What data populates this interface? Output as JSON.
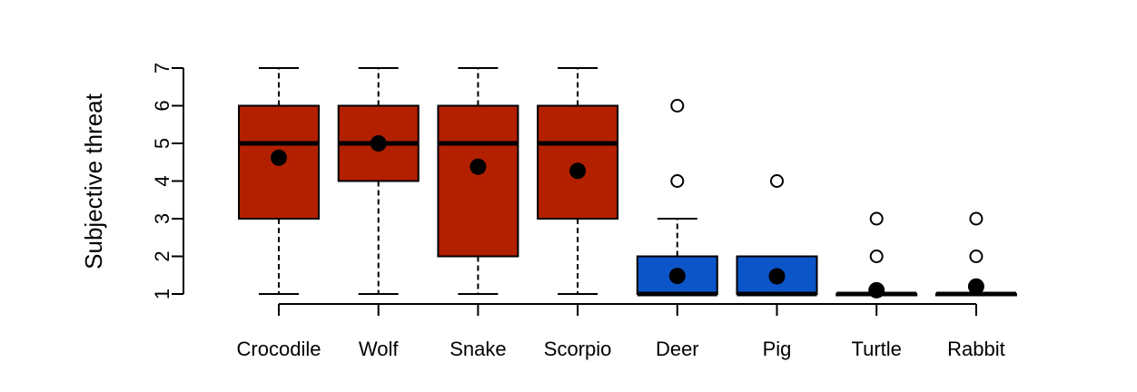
{
  "chart_data": {
    "type": "box",
    "title": "",
    "xlabel": "",
    "ylabel": "Subjective threat",
    "ylim": [
      1,
      7
    ],
    "yticks": [
      1,
      2,
      3,
      4,
      5,
      6,
      7
    ],
    "grid": false,
    "categories": [
      "Crocodile",
      "Wolf",
      "Snake",
      "Scorpio",
      "Deer",
      "Pig",
      "Turtle",
      "Rabbit"
    ],
    "boxes": [
      {
        "category": "Crocodile",
        "min": 1,
        "q1": 3,
        "median": 5,
        "q3": 6,
        "max": 7,
        "mean": 4.62,
        "outliers": [],
        "color": "#B22000"
      },
      {
        "category": "Wolf",
        "min": 1,
        "q1": 4,
        "median": 5,
        "q3": 6,
        "max": 7,
        "mean": 5.0,
        "outliers": [],
        "color": "#B22000"
      },
      {
        "category": "Snake",
        "min": 1,
        "q1": 2,
        "median": 5,
        "q3": 6,
        "max": 7,
        "mean": 4.38,
        "outliers": [],
        "color": "#B22000"
      },
      {
        "category": "Scorpio",
        "min": 1,
        "q1": 3,
        "median": 5,
        "q3": 6,
        "max": 7,
        "mean": 4.27,
        "outliers": [],
        "color": "#B22000"
      },
      {
        "category": "Deer",
        "min": 1,
        "q1": 1,
        "median": 1,
        "q3": 2,
        "max": 3,
        "mean": 1.48,
        "outliers": [
          4,
          6
        ],
        "color": "#0B55C8"
      },
      {
        "category": "Pig",
        "min": 1,
        "q1": 1,
        "median": 1,
        "q3": 2,
        "max": 2,
        "mean": 1.47,
        "outliers": [
          4
        ],
        "color": "#0B55C8"
      },
      {
        "category": "Turtle",
        "min": 1,
        "q1": 1,
        "median": 1,
        "q3": 1,
        "max": 1,
        "mean": 1.1,
        "outliers": [
          2,
          3
        ],
        "color": "#0B55C8"
      },
      {
        "category": "Rabbit",
        "min": 1,
        "q1": 1,
        "median": 1,
        "q3": 1,
        "max": 1,
        "mean": 1.2,
        "outliers": [
          2,
          3
        ],
        "color": "#0B55C8"
      }
    ]
  }
}
